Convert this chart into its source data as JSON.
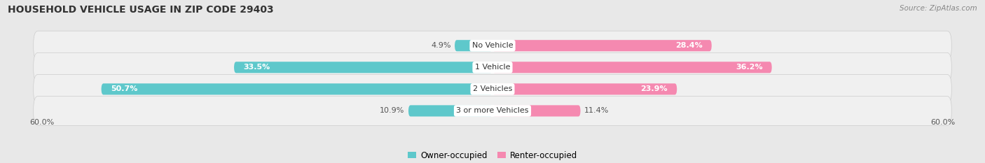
{
  "title": "HOUSEHOLD VEHICLE USAGE IN ZIP CODE 29403",
  "source": "Source: ZipAtlas.com",
  "categories": [
    "No Vehicle",
    "1 Vehicle",
    "2 Vehicles",
    "3 or more Vehicles"
  ],
  "owner_values": [
    4.9,
    33.5,
    50.7,
    10.9
  ],
  "renter_values": [
    28.4,
    36.2,
    23.9,
    11.4
  ],
  "owner_color": "#5ec8cb",
  "renter_color": "#f589b0",
  "owner_color_light": "#a8dfe0",
  "renter_color_light": "#f9b8d2",
  "axis_max": 60.0,
  "x_tick_label": "60.0%",
  "bg_color": "#e8e8e8",
  "row_bg_color": "#f0f0f0",
  "title_fontsize": 10,
  "source_fontsize": 7.5,
  "label_fontsize": 8,
  "category_fontsize": 8,
  "legend_fontsize": 8.5
}
